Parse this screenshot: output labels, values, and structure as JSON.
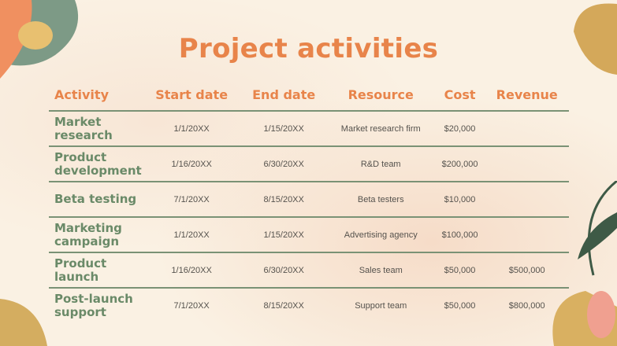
{
  "title": "Project activities",
  "colors": {
    "accent": "#e8844a",
    "green": "#6a8a68",
    "background": "#faf1e3"
  },
  "table": {
    "headers": [
      "Activity",
      "Start date",
      "End date",
      "Resource",
      "Cost",
      "Revenue"
    ],
    "rows": [
      [
        "Market research",
        "1/1/20XX",
        "1/15/20XX",
        "Market research firm",
        "$20,000",
        ""
      ],
      [
        "Product development",
        "1/16/20XX",
        "6/30/20XX",
        "R&D team",
        "$200,000",
        ""
      ],
      [
        "Beta testing",
        "7/1/20XX",
        "8/15/20XX",
        "Beta testers",
        "$10,000",
        ""
      ],
      [
        "Marketing campaign",
        "1/1/20XX",
        "1/15/20XX",
        "Advertising agency",
        "$100,000",
        ""
      ],
      [
        "Product launch",
        "1/16/20XX",
        "6/30/20XX",
        "Sales team",
        "$50,000",
        "$500,000"
      ],
      [
        "Post-launch support",
        "7/1/20XX",
        "8/15/20XX",
        "Support team",
        "$50,000",
        "$800,000"
      ]
    ]
  }
}
